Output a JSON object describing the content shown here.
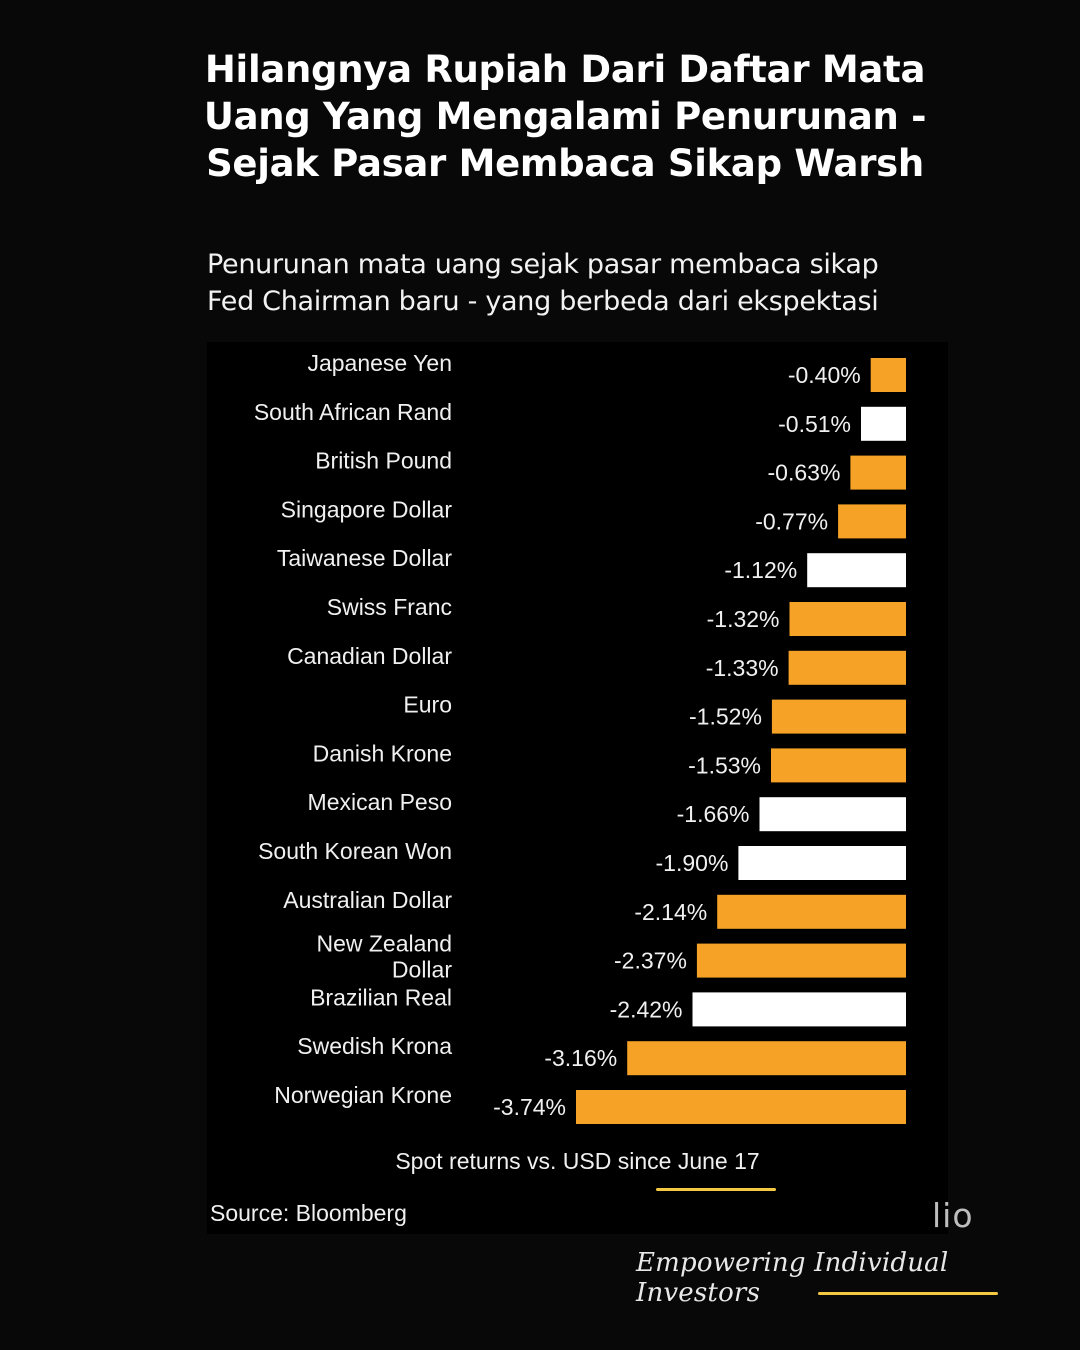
{
  "title_lines": [
    "Hilangnya Rupiah Dari Daftar Mata",
    "Uang Yang Mengalami Penurunan -",
    "Sejak Pasar Membaca Sikap Warsh"
  ],
  "subtitle_lines": [
    "Penurunan mata uang sejak pasar membaca sikap",
    "Fed Chairman baru - yang berbeda dari ekspektasi"
  ],
  "caption": "Spot returns vs. USD since June 17",
  "source": "Source: Bloomberg",
  "brand_partial": "lio",
  "tagline": "Empowering Individual Investors",
  "colors": {
    "orange": "#f5a226",
    "white": "#ffffff",
    "accent_underline": "#f5c842"
  },
  "chart_data": {
    "type": "bar",
    "orientation": "horizontal",
    "categories": [
      "Japanese Yen",
      "South African Rand",
      "British Pound",
      "Singapore Dollar",
      "Taiwanese Dollar",
      "Swiss Franc",
      "Canadian Dollar",
      "Euro",
      "Danish Krone",
      "Mexican Peso",
      "South Korean Won",
      "Australian Dollar",
      "New Zealand Dollar",
      "Brazilian Real",
      "Swedish Krona",
      "Norwegian Krone"
    ],
    "values": [
      -0.4,
      -0.51,
      -0.63,
      -0.77,
      -1.12,
      -1.32,
      -1.33,
      -1.52,
      -1.53,
      -1.66,
      -1.9,
      -2.14,
      -2.37,
      -2.42,
      -3.16,
      -3.74
    ],
    "value_labels": [
      "-0.40%",
      "-0.51%",
      "-0.63%",
      "-0.77%",
      "-1.12%",
      "-1.32%",
      "-1.33%",
      "-1.52%",
      "-1.53%",
      "-1.66%",
      "-1.90%",
      "-2.14%",
      "-2.37%",
      "-2.42%",
      "-3.16%",
      "-3.74%"
    ],
    "bar_colors": [
      "orange",
      "white",
      "orange",
      "orange",
      "white",
      "orange",
      "orange",
      "orange",
      "orange",
      "white",
      "white",
      "orange",
      "orange",
      "white",
      "orange",
      "orange"
    ],
    "xlim": [
      -3.74,
      0
    ],
    "grid": false,
    "legend": "none",
    "xlabel": "Spot returns vs. USD since June 17",
    "ylabel": ""
  }
}
